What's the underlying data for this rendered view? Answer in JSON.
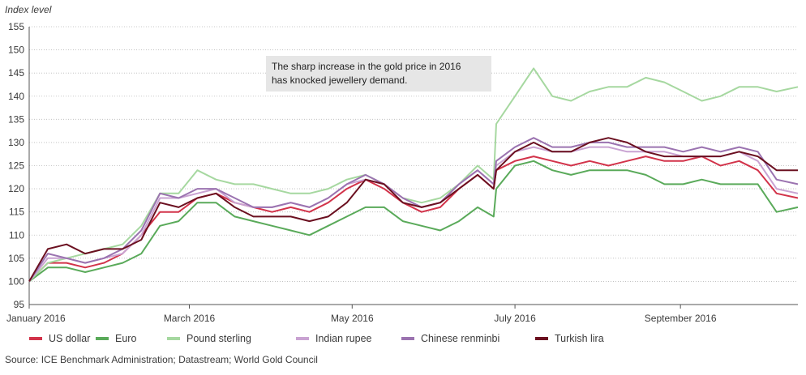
{
  "chart_data": {
    "type": "line",
    "ylabel": "Index level",
    "ylim": [
      95,
      155
    ],
    "yticks": [
      95,
      100,
      105,
      110,
      115,
      120,
      125,
      130,
      135,
      140,
      145,
      150,
      155
    ],
    "x_range": [
      "2016-01-01",
      "2016-10-15"
    ],
    "xtick_labels": [
      {
        "label": "January 2016",
        "date": "2016-01-01"
      },
      {
        "label": "March 2016",
        "date": "2016-03-01"
      },
      {
        "label": "May 2016",
        "date": "2016-05-01"
      },
      {
        "label": "July 2016",
        "date": "2016-07-01"
      },
      {
        "label": "September 2016",
        "date": "2016-09-01"
      }
    ],
    "grid": "horizontal dotted",
    "annotation": {
      "lines": [
        "The sharp increase in the gold price in 2016",
        "has knocked jewellery demand."
      ],
      "background": "#e6e6e6"
    },
    "legend_position": "bottom",
    "series": [
      {
        "name": "US dollar",
        "color": "#d2334a",
        "points": [
          [
            "2016-01-01",
            100
          ],
          [
            "2016-01-08",
            104
          ],
          [
            "2016-01-15",
            104
          ],
          [
            "2016-01-22",
            103
          ],
          [
            "2016-01-29",
            104
          ],
          [
            "2016-02-05",
            106
          ],
          [
            "2016-02-12",
            110
          ],
          [
            "2016-02-19",
            115
          ],
          [
            "2016-02-26",
            115
          ],
          [
            "2016-03-04",
            118
          ],
          [
            "2016-03-11",
            119
          ],
          [
            "2016-03-18",
            117
          ],
          [
            "2016-03-25",
            116
          ],
          [
            "2016-04-01",
            115
          ],
          [
            "2016-04-08",
            116
          ],
          [
            "2016-04-15",
            115
          ],
          [
            "2016-04-22",
            117
          ],
          [
            "2016-04-29",
            120
          ],
          [
            "2016-05-06",
            122
          ],
          [
            "2016-05-13",
            120
          ],
          [
            "2016-05-20",
            117
          ],
          [
            "2016-05-27",
            115
          ],
          [
            "2016-06-03",
            116
          ],
          [
            "2016-06-10",
            120
          ],
          [
            "2016-06-17",
            123
          ],
          [
            "2016-06-23",
            120
          ],
          [
            "2016-06-24",
            124
          ],
          [
            "2016-07-01",
            126
          ],
          [
            "2016-07-08",
            127
          ],
          [
            "2016-07-15",
            126
          ],
          [
            "2016-07-22",
            125
          ],
          [
            "2016-07-29",
            126
          ],
          [
            "2016-08-05",
            125
          ],
          [
            "2016-08-12",
            126
          ],
          [
            "2016-08-19",
            127
          ],
          [
            "2016-08-26",
            126
          ],
          [
            "2016-09-02",
            126
          ],
          [
            "2016-09-09",
            127
          ],
          [
            "2016-09-16",
            125
          ],
          [
            "2016-09-23",
            126
          ],
          [
            "2016-09-30",
            124
          ],
          [
            "2016-10-07",
            119
          ],
          [
            "2016-10-15",
            118
          ]
        ]
      },
      {
        "name": "Euro",
        "color": "#5aaa5a",
        "points": [
          [
            "2016-01-01",
            100
          ],
          [
            "2016-01-08",
            103
          ],
          [
            "2016-01-15",
            103
          ],
          [
            "2016-01-22",
            102
          ],
          [
            "2016-01-29",
            103
          ],
          [
            "2016-02-05",
            104
          ],
          [
            "2016-02-12",
            106
          ],
          [
            "2016-02-19",
            112
          ],
          [
            "2016-02-26",
            113
          ],
          [
            "2016-03-04",
            117
          ],
          [
            "2016-03-11",
            117
          ],
          [
            "2016-03-18",
            114
          ],
          [
            "2016-03-25",
            113
          ],
          [
            "2016-04-01",
            112
          ],
          [
            "2016-04-08",
            111
          ],
          [
            "2016-04-15",
            110
          ],
          [
            "2016-04-22",
            112
          ],
          [
            "2016-04-29",
            114
          ],
          [
            "2016-05-06",
            116
          ],
          [
            "2016-05-13",
            116
          ],
          [
            "2016-05-20",
            113
          ],
          [
            "2016-05-27",
            112
          ],
          [
            "2016-06-03",
            111
          ],
          [
            "2016-06-10",
            113
          ],
          [
            "2016-06-17",
            116
          ],
          [
            "2016-06-23",
            114
          ],
          [
            "2016-06-24",
            120
          ],
          [
            "2016-07-01",
            125
          ],
          [
            "2016-07-08",
            126
          ],
          [
            "2016-07-15",
            124
          ],
          [
            "2016-07-22",
            123
          ],
          [
            "2016-07-29",
            124
          ],
          [
            "2016-08-05",
            124
          ],
          [
            "2016-08-12",
            124
          ],
          [
            "2016-08-19",
            123
          ],
          [
            "2016-08-26",
            121
          ],
          [
            "2016-09-02",
            121
          ],
          [
            "2016-09-09",
            122
          ],
          [
            "2016-09-16",
            121
          ],
          [
            "2016-09-23",
            121
          ],
          [
            "2016-09-30",
            121
          ],
          [
            "2016-10-07",
            115
          ],
          [
            "2016-10-15",
            116
          ]
        ]
      },
      {
        "name": "Pound sterling",
        "color": "#a6d8a0",
        "points": [
          [
            "2016-01-01",
            100
          ],
          [
            "2016-01-08",
            104
          ],
          [
            "2016-01-15",
            105
          ],
          [
            "2016-01-22",
            106
          ],
          [
            "2016-01-29",
            107
          ],
          [
            "2016-02-05",
            108
          ],
          [
            "2016-02-12",
            112
          ],
          [
            "2016-02-19",
            119
          ],
          [
            "2016-02-26",
            119
          ],
          [
            "2016-03-04",
            124
          ],
          [
            "2016-03-11",
            122
          ],
          [
            "2016-03-18",
            121
          ],
          [
            "2016-03-25",
            121
          ],
          [
            "2016-04-01",
            120
          ],
          [
            "2016-04-08",
            119
          ],
          [
            "2016-04-15",
            119
          ],
          [
            "2016-04-22",
            120
          ],
          [
            "2016-04-29",
            122
          ],
          [
            "2016-05-06",
            123
          ],
          [
            "2016-05-13",
            121
          ],
          [
            "2016-05-20",
            118
          ],
          [
            "2016-05-27",
            117
          ],
          [
            "2016-06-03",
            118
          ],
          [
            "2016-06-10",
            121
          ],
          [
            "2016-06-17",
            125
          ],
          [
            "2016-06-23",
            122
          ],
          [
            "2016-06-24",
            134
          ],
          [
            "2016-07-01",
            140
          ],
          [
            "2016-07-08",
            146
          ],
          [
            "2016-07-15",
            140
          ],
          [
            "2016-07-22",
            139
          ],
          [
            "2016-07-29",
            141
          ],
          [
            "2016-08-05",
            142
          ],
          [
            "2016-08-12",
            142
          ],
          [
            "2016-08-19",
            144
          ],
          [
            "2016-08-26",
            143
          ],
          [
            "2016-09-02",
            141
          ],
          [
            "2016-09-09",
            139
          ],
          [
            "2016-09-16",
            140
          ],
          [
            "2016-09-23",
            142
          ],
          [
            "2016-09-30",
            142
          ],
          [
            "2016-10-07",
            141
          ],
          [
            "2016-10-15",
            142
          ]
        ]
      },
      {
        "name": "Indian rupee",
        "color": "#c9a3d2",
        "points": [
          [
            "2016-01-01",
            100
          ],
          [
            "2016-01-08",
            105
          ],
          [
            "2016-01-15",
            105
          ],
          [
            "2016-01-22",
            104
          ],
          [
            "2016-01-29",
            105
          ],
          [
            "2016-02-05",
            106
          ],
          [
            "2016-02-12",
            110
          ],
          [
            "2016-02-19",
            118
          ],
          [
            "2016-02-26",
            118
          ],
          [
            "2016-03-04",
            119
          ],
          [
            "2016-03-11",
            120
          ],
          [
            "2016-03-18",
            117
          ],
          [
            "2016-03-25",
            116
          ],
          [
            "2016-04-01",
            116
          ],
          [
            "2016-04-08",
            117
          ],
          [
            "2016-04-15",
            116
          ],
          [
            "2016-04-22",
            118
          ],
          [
            "2016-04-29",
            121
          ],
          [
            "2016-05-06",
            122
          ],
          [
            "2016-05-13",
            121
          ],
          [
            "2016-05-20",
            118
          ],
          [
            "2016-05-27",
            116
          ],
          [
            "2016-06-03",
            117
          ],
          [
            "2016-06-10",
            121
          ],
          [
            "2016-06-17",
            124
          ],
          [
            "2016-06-23",
            121
          ],
          [
            "2016-06-24",
            125
          ],
          [
            "2016-07-01",
            128
          ],
          [
            "2016-07-08",
            129
          ],
          [
            "2016-07-15",
            128
          ],
          [
            "2016-07-22",
            128
          ],
          [
            "2016-07-29",
            129
          ],
          [
            "2016-08-05",
            129
          ],
          [
            "2016-08-12",
            128
          ],
          [
            "2016-08-19",
            128
          ],
          [
            "2016-08-26",
            128
          ],
          [
            "2016-09-02",
            127
          ],
          [
            "2016-09-09",
            127
          ],
          [
            "2016-09-16",
            127
          ],
          [
            "2016-09-23",
            128
          ],
          [
            "2016-09-30",
            126
          ],
          [
            "2016-10-07",
            120
          ],
          [
            "2016-10-15",
            119
          ]
        ]
      },
      {
        "name": "Chinese renminbi",
        "color": "#9b73b0",
        "points": [
          [
            "2016-01-01",
            100
          ],
          [
            "2016-01-08",
            106
          ],
          [
            "2016-01-15",
            105
          ],
          [
            "2016-01-22",
            104
          ],
          [
            "2016-01-29",
            105
          ],
          [
            "2016-02-05",
            107
          ],
          [
            "2016-02-12",
            111
          ],
          [
            "2016-02-19",
            119
          ],
          [
            "2016-02-26",
            118
          ],
          [
            "2016-03-04",
            120
          ],
          [
            "2016-03-11",
            120
          ],
          [
            "2016-03-18",
            118
          ],
          [
            "2016-03-25",
            116
          ],
          [
            "2016-04-01",
            116
          ],
          [
            "2016-04-08",
            117
          ],
          [
            "2016-04-15",
            116
          ],
          [
            "2016-04-22",
            118
          ],
          [
            "2016-04-29",
            121
          ],
          [
            "2016-05-06",
            123
          ],
          [
            "2016-05-13",
            121
          ],
          [
            "2016-05-20",
            118
          ],
          [
            "2016-05-27",
            116
          ],
          [
            "2016-06-03",
            117
          ],
          [
            "2016-06-10",
            121
          ],
          [
            "2016-06-17",
            124
          ],
          [
            "2016-06-23",
            121
          ],
          [
            "2016-06-24",
            126
          ],
          [
            "2016-07-01",
            129
          ],
          [
            "2016-07-08",
            131
          ],
          [
            "2016-07-15",
            129
          ],
          [
            "2016-07-22",
            129
          ],
          [
            "2016-07-29",
            130
          ],
          [
            "2016-08-05",
            130
          ],
          [
            "2016-08-12",
            129
          ],
          [
            "2016-08-19",
            129
          ],
          [
            "2016-08-26",
            129
          ],
          [
            "2016-09-02",
            128
          ],
          [
            "2016-09-09",
            129
          ],
          [
            "2016-09-16",
            128
          ],
          [
            "2016-09-23",
            129
          ],
          [
            "2016-09-30",
            128
          ],
          [
            "2016-10-07",
            122
          ],
          [
            "2016-10-15",
            121
          ]
        ]
      },
      {
        "name": "Turkish lira",
        "color": "#6b1020",
        "points": [
          [
            "2016-01-01",
            100
          ],
          [
            "2016-01-08",
            107
          ],
          [
            "2016-01-15",
            108
          ],
          [
            "2016-01-22",
            106
          ],
          [
            "2016-01-29",
            107
          ],
          [
            "2016-02-05",
            107
          ],
          [
            "2016-02-12",
            109
          ],
          [
            "2016-02-19",
            117
          ],
          [
            "2016-02-26",
            116
          ],
          [
            "2016-03-04",
            118
          ],
          [
            "2016-03-11",
            119
          ],
          [
            "2016-03-18",
            116
          ],
          [
            "2016-03-25",
            114
          ],
          [
            "2016-04-01",
            114
          ],
          [
            "2016-04-08",
            114
          ],
          [
            "2016-04-15",
            113
          ],
          [
            "2016-04-22",
            114
          ],
          [
            "2016-04-29",
            117
          ],
          [
            "2016-05-06",
            122
          ],
          [
            "2016-05-13",
            121
          ],
          [
            "2016-05-20",
            117
          ],
          [
            "2016-05-27",
            116
          ],
          [
            "2016-06-03",
            117
          ],
          [
            "2016-06-10",
            120
          ],
          [
            "2016-06-17",
            123
          ],
          [
            "2016-06-23",
            120
          ],
          [
            "2016-06-24",
            124
          ],
          [
            "2016-07-01",
            128
          ],
          [
            "2016-07-08",
            130
          ],
          [
            "2016-07-15",
            128
          ],
          [
            "2016-07-22",
            128
          ],
          [
            "2016-07-29",
            130
          ],
          [
            "2016-08-05",
            131
          ],
          [
            "2016-08-12",
            130
          ],
          [
            "2016-08-19",
            128
          ],
          [
            "2016-08-26",
            127
          ],
          [
            "2016-09-02",
            127
          ],
          [
            "2016-09-09",
            127
          ],
          [
            "2016-09-16",
            127
          ],
          [
            "2016-09-23",
            128
          ],
          [
            "2016-09-30",
            127
          ],
          [
            "2016-10-07",
            124
          ],
          [
            "2016-10-15",
            124
          ]
        ]
      }
    ]
  },
  "source": "Source: ICE Benchmark Administration; Datastream; World Gold Council"
}
